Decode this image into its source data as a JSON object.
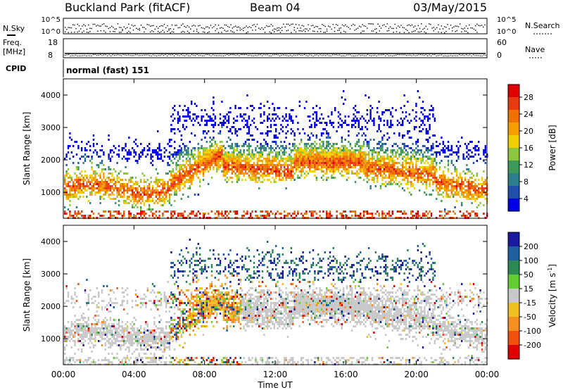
{
  "header": {
    "title": "Buckland Park (fitACF)",
    "beam": "Beam 04",
    "date": "03/May/2015"
  },
  "strips": {
    "nsky_label": "N.Sky",
    "nsky_ticks": [
      "10^5",
      "10^0"
    ],
    "nsearch_label": "N.Search",
    "nsearch_ticks": [
      "10^5",
      "10^0"
    ],
    "freq_label": "Freq.",
    "freq_unit": "[MHz]",
    "freq_ticks": [
      "18",
      "8"
    ],
    "nave_label": "Nave",
    "nave_ticks": [
      "60",
      "0"
    ],
    "cpid_label": "CPID",
    "cpid_value": "normal (fast) 151"
  },
  "chart_data": [
    {
      "type": "heatmap",
      "title": "",
      "xlabel": "",
      "ylabel": "Slant Range [km]",
      "ylim": [
        200,
        4500
      ],
      "yticks": [
        1000,
        2000,
        3000,
        4000
      ],
      "colorbar_label": "Power [dB]",
      "colorbar_ticks": [
        4,
        8,
        12,
        16,
        20,
        24,
        28
      ],
      "colors": [
        "#0000e6",
        "#1f4fa8",
        "#2e7d8c",
        "#3f9a5a",
        "#8cc63f",
        "#f0d000",
        "#f5a000",
        "#f07000",
        "#e83a10",
        "#e00000"
      ]
    },
    {
      "type": "heatmap",
      "title": "",
      "xlabel": "Time UT",
      "ylabel": "Slant Range [km]",
      "ylim": [
        200,
        4500
      ],
      "yticks": [
        1000,
        2000,
        3000,
        4000
      ],
      "colorbar_label": "Velocity [m s^-1]",
      "colorbar_ticks": [
        200,
        100,
        50,
        15,
        -15,
        -50,
        -100,
        -200
      ],
      "colors": [
        "#1a1aa0",
        "#1f5fa0",
        "#2e8a55",
        "#66cc33",
        "#c8c8c8",
        "#f0c020",
        "#f59020",
        "#f05010",
        "#e00000"
      ]
    }
  ],
  "time_axis": {
    "xlabel": "Time UT",
    "ticks": [
      "00:00",
      "04:00",
      "08:00",
      "12:00",
      "16:00",
      "20:00",
      "00:00"
    ]
  }
}
